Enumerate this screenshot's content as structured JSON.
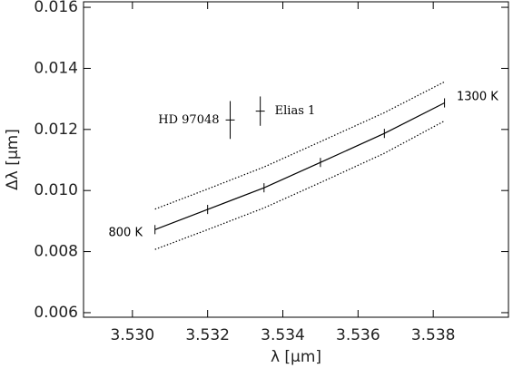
{
  "chart_data": {
    "type": "errorbar",
    "xlabel": "λ [μm]",
    "ylabel": "Δλ [μm]",
    "xlim": [
      3.5287,
      3.54
    ],
    "ylim": [
      0.00585,
      0.01618
    ],
    "xticks": [
      {
        "value": 3.53,
        "label": "3.530"
      },
      {
        "value": 3.532,
        "label": "3.532"
      },
      {
        "value": 3.534,
        "label": "3.534"
      },
      {
        "value": 3.536,
        "label": "3.536"
      },
      {
        "value": 3.538,
        "label": "3.538"
      }
    ],
    "yticks": [
      {
        "value": 0.006,
        "label": "0.006"
      },
      {
        "value": 0.008,
        "label": "0.008"
      },
      {
        "value": 0.01,
        "label": "0.010"
      },
      {
        "value": 0.012,
        "label": "0.012"
      },
      {
        "value": 0.014,
        "label": "0.014"
      },
      {
        "value": 0.016,
        "label": "0.016"
      }
    ],
    "series": [
      {
        "style": "solid",
        "color": "#000000",
        "x": [
          3.5306,
          3.532,
          3.5335,
          3.535,
          3.5367,
          3.5383
        ],
        "values": [
          0.00872,
          0.00938,
          0.01009,
          0.01092,
          0.01187,
          0.01287
        ],
        "yerr": [
          0.00015,
          0.00015,
          0.00015,
          0.00015,
          0.00015,
          0.00015
        ]
      },
      {
        "style": "dotted",
        "color": "#000000",
        "x": [
          3.5306,
          3.532,
          3.5335,
          3.535,
          3.5367,
          3.5383
        ],
        "values": [
          0.00939,
          0.01005,
          0.01077,
          0.0116,
          0.01255,
          0.01356
        ]
      },
      {
        "style": "dotted",
        "color": "#000000",
        "x": [
          3.5306,
          3.532,
          3.5335,
          3.535,
          3.5367,
          3.5383
        ],
        "values": [
          0.00807,
          0.00872,
          0.00943,
          0.01026,
          0.01122,
          0.01228
        ]
      }
    ],
    "observations": [
      {
        "label": "HD 97048",
        "x": 3.5326,
        "y": 0.01231,
        "xerr": 0.00012,
        "yerr": 0.00062
      },
      {
        "label": "Elias 1",
        "x": 3.5334,
        "y": 0.0126,
        "xerr": 0.00012,
        "yerr": 0.00048
      }
    ],
    "annotations": [
      "800 K",
      "1300 K"
    ]
  }
}
